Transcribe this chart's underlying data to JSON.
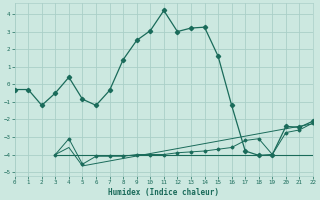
{
  "title": "",
  "xlabel": "Humidex (Indice chaleur)",
  "bg_color": "#cce8e0",
  "grid_color": "#aacfc8",
  "line_color": "#1a6b5a",
  "line1_x": [
    0,
    1,
    2,
    3,
    4,
    5,
    6,
    7,
    8,
    9,
    10,
    11,
    12,
    13,
    14,
    15,
    16,
    17,
    18,
    19,
    20,
    21,
    22
  ],
  "line1_y": [
    -0.3,
    -0.3,
    -1.2,
    -0.5,
    0.4,
    -0.85,
    -1.2,
    -0.35,
    1.4,
    2.5,
    3.05,
    4.2,
    3.0,
    3.2,
    3.25,
    1.6,
    -1.2,
    -3.8,
    -4.05,
    -4.0,
    -2.4,
    -2.45,
    -2.1
  ],
  "line2_x": [
    3,
    4,
    5,
    6,
    7,
    8,
    9,
    10,
    11,
    12,
    13,
    14,
    15,
    16,
    17,
    18,
    19,
    20,
    21,
    22
  ],
  "line2_y": [
    -4.0,
    -3.1,
    -4.55,
    -4.1,
    -4.1,
    -4.1,
    -4.0,
    -4.0,
    -4.0,
    -3.9,
    -3.85,
    -3.8,
    -3.7,
    -3.6,
    -3.2,
    -3.1,
    -4.0,
    -2.75,
    -2.6,
    -2.2
  ],
  "line3_x": [
    3,
    4,
    5,
    22
  ],
  "line3_y": [
    -4.0,
    -3.6,
    -4.65,
    -2.25
  ],
  "line4_x": [
    3,
    22
  ],
  "line4_y": [
    -4.0,
    -4.0
  ],
  "xlim": [
    0,
    22
  ],
  "ylim": [
    -5.2,
    4.6
  ],
  "yticks": [
    -5,
    -4,
    -3,
    -2,
    -1,
    0,
    1,
    2,
    3,
    4
  ],
  "xticks": [
    0,
    1,
    2,
    3,
    4,
    5,
    6,
    7,
    8,
    9,
    10,
    11,
    12,
    13,
    14,
    15,
    16,
    17,
    18,
    19,
    20,
    21,
    22
  ]
}
